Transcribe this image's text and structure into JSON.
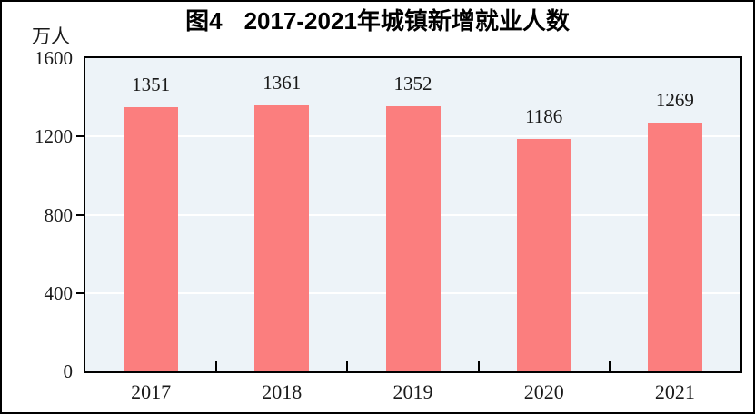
{
  "chart_data": {
    "type": "bar",
    "figure_label": "图4",
    "title": "2017-2021年城镇新增就业人数",
    "unit_label": "万人",
    "categories": [
      "2017",
      "2018",
      "2019",
      "2020",
      "2021"
    ],
    "values": [
      1351,
      1361,
      1352,
      1186,
      1269
    ],
    "ylabel": "万人",
    "xlabel": "",
    "ylim": [
      0,
      1600
    ],
    "yticks": [
      0,
      400,
      800,
      1200,
      1600
    ],
    "grid": "horizontal",
    "legend": "none",
    "bar_color": "#FB7E7E",
    "plot_background": "#EDF3F8",
    "gridline_color": "#FFFFFF",
    "axis_color": "#000000",
    "text_color": "#1A1A1A"
  }
}
